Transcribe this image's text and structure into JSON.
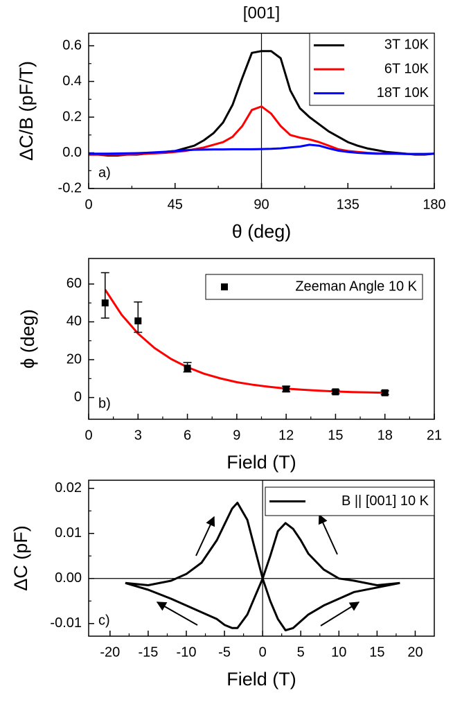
{
  "chart_data": [
    {
      "type": "line",
      "title": "[001]",
      "panel_label": "a)",
      "xlabel": "θ (deg)",
      "ylabel": "ΔC/B (pF/T)",
      "xlim": [
        0,
        180
      ],
      "xticks": [
        0,
        45,
        90,
        135,
        180
      ],
      "ylim": [
        -0.2,
        0.67
      ],
      "yticks": [
        -0.2,
        {
          "value": 0,
          "label": "0.0"
        },
        0.2,
        0.4,
        0.6
      ],
      "vline": 90,
      "legend": "upper right",
      "x": [
        0,
        5,
        10,
        15,
        20,
        25,
        30,
        35,
        40,
        45,
        50,
        55,
        60,
        65,
        70,
        75,
        80,
        85,
        90,
        95,
        100,
        105,
        110,
        115,
        120,
        125,
        130,
        135,
        140,
        145,
        150,
        155,
        160,
        165,
        170,
        175,
        180
      ],
      "series": [
        {
          "name": "3T 10K",
          "color": "#000000",
          "values": [
            -0.01,
            -0.01,
            -0.015,
            -0.015,
            -0.01,
            -0.01,
            -0.005,
            0.0,
            0.005,
            0.01,
            0.025,
            0.04,
            0.07,
            0.11,
            0.17,
            0.27,
            0.42,
            0.56,
            0.57,
            0.57,
            0.53,
            0.35,
            0.25,
            0.2,
            0.16,
            0.12,
            0.09,
            0.06,
            0.04,
            0.025,
            0.015,
            0.005,
            0.0,
            -0.005,
            -0.01,
            -0.01,
            -0.005
          ]
        },
        {
          "name": "6T 10K",
          "color": "#ff0000",
          "values": [
            -0.01,
            -0.01,
            -0.01,
            -0.01,
            -0.01,
            -0.008,
            -0.005,
            -0.003,
            0.0,
            0.005,
            0.01,
            0.02,
            0.03,
            0.045,
            0.06,
            0.09,
            0.15,
            0.24,
            0.26,
            0.22,
            0.15,
            0.1,
            0.085,
            0.075,
            0.06,
            0.04,
            0.02,
            0.01,
            0.005,
            0.0,
            -0.003,
            -0.005,
            -0.005,
            -0.007,
            -0.008,
            -0.008,
            -0.005
          ]
        },
        {
          "name": "18T 10K",
          "color": "#0000ff",
          "values": [
            -0.005,
            -0.005,
            -0.005,
            -0.004,
            -0.003,
            -0.002,
            0.0,
            0.003,
            0.006,
            0.01,
            0.014,
            0.017,
            0.018,
            0.019,
            0.019,
            0.02,
            0.02,
            0.02,
            0.021,
            0.022,
            0.025,
            0.03,
            0.035,
            0.045,
            0.04,
            0.025,
            0.012,
            0.005,
            0.0,
            -0.003,
            -0.005,
            -0.005,
            -0.005,
            -0.006,
            -0.006,
            -0.006,
            -0.005
          ]
        }
      ]
    },
    {
      "type": "scatter",
      "panel_label": "b)",
      "xlabel": "Field (T)",
      "ylabel": "ϕ (deg)",
      "xlim": [
        0,
        21
      ],
      "xticks": [
        0,
        3,
        6,
        9,
        12,
        15,
        18,
        21
      ],
      "ylim": [
        -11.5,
        73.5
      ],
      "yticks": [
        0,
        20,
        40,
        60
      ],
      "legend": "upper right",
      "series": [
        {
          "name": "Zeeman Angle 10 K",
          "color": "#000000",
          "x": [
            1,
            3,
            6,
            12,
            15,
            18
          ],
          "values": [
            50,
            40.5,
            15.5,
            4.5,
            3,
            2.5
          ],
          "error_minus": [
            8,
            6,
            2,
            1.5,
            1,
            1
          ],
          "error_plus": [
            16,
            10,
            3,
            1.5,
            1,
            1
          ]
        }
      ],
      "fit": {
        "color": "#ff0000",
        "x": [
          1,
          2,
          3,
          4,
          5,
          6,
          7,
          8,
          9,
          10,
          11,
          12,
          13,
          14,
          15,
          16,
          17,
          18
        ],
        "values": [
          57.0,
          43.8,
          33.8,
          26.2,
          20.4,
          16.0,
          12.6,
          10.1,
          8.1,
          6.7,
          5.6,
          4.7,
          4.1,
          3.6,
          3.2,
          2.9,
          2.7,
          2.5
        ]
      }
    },
    {
      "type": "line",
      "panel_label": "c)",
      "xlabel": "Field (T)",
      "ylabel": "ΔC (pF)",
      "xlim": [
        -22.8,
        22.5
      ],
      "xticks": [
        -20,
        -15,
        -10,
        -5,
        0,
        5,
        10,
        15,
        20
      ],
      "ylim": [
        -0.0128,
        0.0218
      ],
      "yticks": [
        -0.01,
        {
          "value": 0,
          "label": "0.00"
        },
        0.01,
        0.02
      ],
      "vline": 0,
      "hline": 0,
      "legend": "upper right",
      "x": [
        -18,
        -15,
        -12,
        -10,
        -8,
        -6,
        -5,
        -4,
        -3.3,
        -2,
        -1,
        0,
        1,
        2,
        3,
        4,
        5,
        6,
        8,
        10,
        12,
        15,
        18,
        null,
        -18,
        -15,
        -12,
        -10,
        -8,
        -6,
        -5,
        -4,
        -3.3,
        -2,
        -1,
        0,
        1,
        2,
        3,
        4,
        5,
        6,
        8,
        10,
        12,
        15,
        18
      ],
      "series": [
        {
          "name": "B || [001] 10 K",
          "color": "#000000",
          "values": [
            -0.001,
            -0.0015,
            -0.0005,
            0.001,
            0.0035,
            0.0085,
            0.012,
            0.0155,
            0.0168,
            0.013,
            0.0065,
            0,
            -0.005,
            -0.009,
            -0.0115,
            -0.011,
            -0.0095,
            -0.008,
            -0.006,
            -0.0045,
            -0.003,
            -0.002,
            -0.001,
            null,
            -0.001,
            -0.0025,
            -0.0045,
            -0.006,
            -0.0075,
            -0.009,
            -0.0103,
            -0.011,
            -0.011,
            -0.008,
            -0.004,
            0,
            0.005,
            0.0105,
            0.0123,
            0.011,
            0.0085,
            0.0055,
            0.002,
            0.0,
            -0.0005,
            -0.0015,
            -0.001
          ]
        }
      ]
    }
  ]
}
